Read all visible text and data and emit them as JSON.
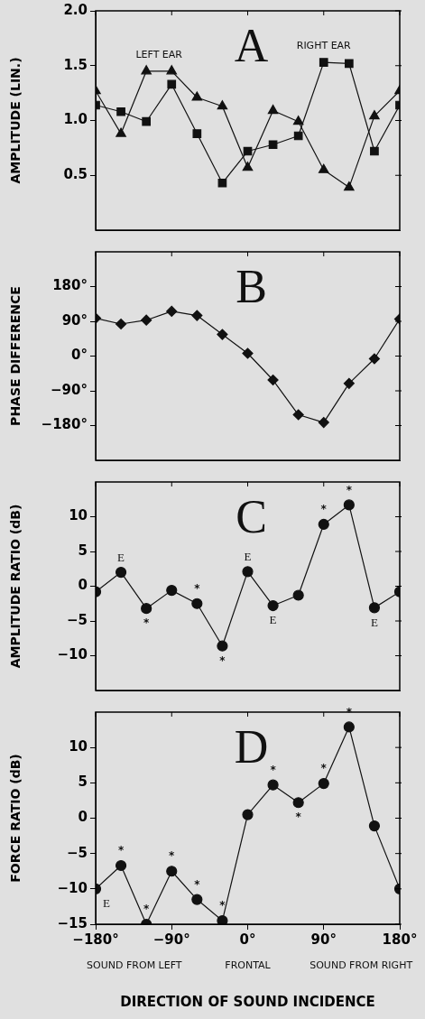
{
  "chart_data": [
    {
      "type": "line",
      "ylabel": "AMPLITUDE (LIN.)",
      "annotations": [
        "A"
      ],
      "x": [
        -180,
        -150,
        -120,
        -90,
        -60,
        -30,
        0,
        30,
        60,
        90,
        120,
        150,
        180
      ],
      "xlim": [
        -180,
        180
      ],
      "xticks": [
        -180,
        -90,
        0,
        90,
        180
      ],
      "ylim": [
        0,
        2
      ],
      "yticks": [
        0.5,
        {
          "value": 1,
          "label": "1.0"
        },
        1.5,
        {
          "value": 2,
          "label": "2.0"
        }
      ],
      "tick_labels": "y",
      "series": [
        {
          "name": "LEFT EAR",
          "color": "#111111",
          "marker": "triangle",
          "values": [
            1.27,
            0.88,
            1.45,
            1.45,
            1.21,
            1.13,
            0.57,
            1.09,
            0.99,
            0.55,
            0.39,
            1.04,
            1.27
          ]
        },
        {
          "name": "RIGHT EAR",
          "color": "#111111",
          "marker": "square",
          "values": [
            1.14,
            1.08,
            0.99,
            1.33,
            0.88,
            0.43,
            0.72,
            0.78,
            0.86,
            1.53,
            1.52,
            0.72,
            1.14
          ]
        }
      ]
    },
    {
      "type": "line",
      "ylabel": "PHASE DIFFERENCE",
      "annotations": [
        "B"
      ],
      "x": [
        -180,
        -150,
        -120,
        -90,
        -60,
        -30,
        0,
        30,
        60,
        90,
        120,
        150,
        180
      ],
      "xlim": [
        -180,
        180
      ],
      "xticks": [
        -180,
        -90,
        0,
        90,
        180
      ],
      "ylim": [
        -270,
        270
      ],
      "yticks": [
        {
          "value": -180,
          "label": "−180°"
        },
        {
          "value": -90,
          "label": "−90°"
        },
        {
          "value": 0,
          "label": "0°"
        },
        {
          "value": 90,
          "label": "90°"
        },
        {
          "value": 180,
          "label": "180°"
        }
      ],
      "tick_labels": "y",
      "marker": "diamond",
      "series": [
        {
          "color": "#111111",
          "values": [
            98,
            83,
            93,
            116,
            105,
            56,
            7,
            -62,
            -152,
            -172,
            -71,
            -7,
            96
          ]
        }
      ]
    },
    {
      "type": "line",
      "ylabel": "AMPLITUDE RATIO (dB)",
      "annotations": [
        "C",
        {
          "text": "E",
          "x": -150,
          "y": 2
        },
        {
          "text": "*",
          "x": -120,
          "y": -3.2
        },
        {
          "text": "*",
          "x": -60,
          "y": -2.5
        },
        {
          "text": "*",
          "x": -30,
          "y": -8.6
        },
        {
          "text": "E",
          "x": 0,
          "y": 2.1
        },
        {
          "text": "E",
          "x": 30,
          "y": -2.8
        },
        {
          "text": "*",
          "x": 90,
          "y": 8.9
        },
        {
          "text": "*",
          "x": 120,
          "y": 11.7
        },
        {
          "text": "E",
          "x": 150,
          "y": -3.1
        }
      ],
      "x": [
        -180,
        -150,
        -120,
        -90,
        -60,
        -30,
        0,
        30,
        60,
        90,
        120,
        150,
        180
      ],
      "xlim": [
        -180,
        180
      ],
      "xticks": [
        -180,
        -90,
        0,
        90,
        180
      ],
      "ylim": [
        -15,
        15
      ],
      "yticks": [
        {
          "value": -10,
          "label": "−10"
        },
        {
          "value": -5,
          "label": "−5"
        },
        0,
        5,
        10
      ],
      "tick_labels": "y",
      "marker": "circle",
      "series": [
        {
          "color": "#111111",
          "values": [
            -0.8,
            2,
            -3.2,
            -0.6,
            -2.5,
            -8.6,
            2.1,
            -2.8,
            -1.3,
            8.9,
            11.7,
            -3.1,
            -0.8
          ]
        }
      ]
    },
    {
      "type": "line",
      "ylabel": "FORCE RATIO (dB)",
      "xlabel": "DIRECTION OF SOUND INCIDENCE",
      "annotations": [
        "D",
        {
          "text": "E",
          "x": -180,
          "y": -10
        },
        {
          "text": "*",
          "x": -150,
          "y": -6.7
        },
        {
          "text": "*",
          "x": -120,
          "y": -15
        },
        {
          "text": "*",
          "x": -90,
          "y": -7.5
        },
        {
          "text": "*",
          "x": -60,
          "y": -11.5
        },
        {
          "text": "*",
          "x": -30,
          "y": -14.5
        },
        {
          "text": "*",
          "x": 30,
          "y": 4.7
        },
        {
          "text": "*",
          "x": 60,
          "y": 2.2
        },
        {
          "text": "*",
          "x": 90,
          "y": 4.9
        },
        {
          "text": "*",
          "x": 120,
          "y": 12.9
        },
        "SOUND FROM LEFT",
        "FRONTAL",
        "SOUND FROM RIGHT"
      ],
      "x": [
        -180,
        -150,
        -120,
        -90,
        -60,
        -30,
        0,
        30,
        60,
        90,
        120,
        150,
        180
      ],
      "xlim": [
        -180,
        180
      ],
      "xticks": [
        {
          "value": -180,
          "label": "−180°"
        },
        {
          "value": -90,
          "label": "−90°"
        },
        {
          "value": 0,
          "label": "0°"
        },
        {
          "value": 90,
          "label": "90°"
        },
        {
          "value": 180,
          "label": "180°"
        }
      ],
      "ylim": [
        -15,
        15
      ],
      "yticks": [
        {
          "value": -15,
          "label": "−15"
        },
        {
          "value": -10,
          "label": "−10"
        },
        {
          "value": -5,
          "label": "−5"
        },
        0,
        5,
        10
      ],
      "marker": "circle",
      "series": [
        {
          "color": "#111111",
          "values": [
            -10,
            -6.7,
            -15,
            -7.5,
            -11.5,
            -14.5,
            0.5,
            4.7,
            2.2,
            4.9,
            12.9,
            -1.1,
            -10
          ]
        }
      ]
    }
  ]
}
